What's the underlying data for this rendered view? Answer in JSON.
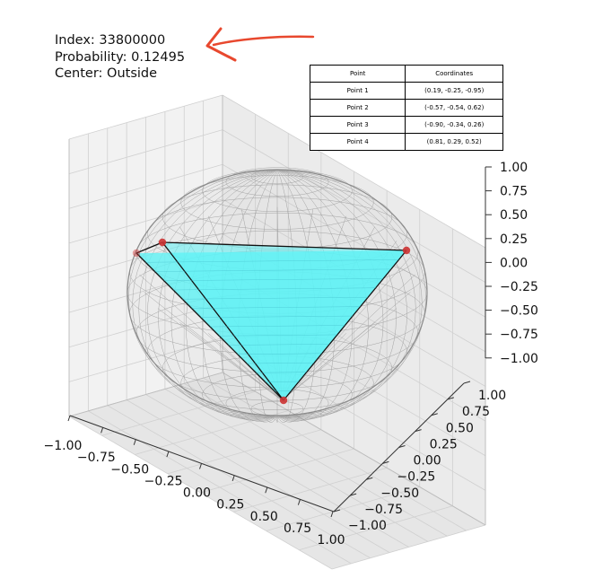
{
  "info": {
    "index_label": "Index: 33800000",
    "probability_label": "Probability: 0.12495",
    "center_label": "Center: Outside"
  },
  "colors": {
    "arrow": "#e8482e",
    "triangle_fill": "#5ef3f5",
    "sphere_wire": "#8c8c8c",
    "point": "#cc3333"
  },
  "table": {
    "headers": [
      "Point",
      "Coordinates"
    ],
    "rows": [
      [
        "Point 1",
        "(0.19, -0.25, -0.95)"
      ],
      [
        "Point 2",
        "(-0.57, -0.54, 0.62)"
      ],
      [
        "Point 3",
        "(-0.90, -0.34, 0.26)"
      ],
      [
        "Point 4",
        "(0.81, 0.29, 0.52)"
      ]
    ]
  },
  "chart_data": {
    "type": "scatter",
    "subtype": "3d-sphere-tetrahedron",
    "points": [
      {
        "name": "Point 1",
        "x": 0.19,
        "y": -0.25,
        "z": -0.95
      },
      {
        "name": "Point 2",
        "x": -0.57,
        "y": -0.54,
        "z": 0.62
      },
      {
        "name": "Point 3",
        "x": -0.9,
        "y": -0.34,
        "z": 0.26
      },
      {
        "name": "Point 4",
        "x": 0.81,
        "y": 0.29,
        "z": 0.52
      }
    ],
    "xlim": [
      -1,
      1
    ],
    "ylim": [
      -1,
      1
    ],
    "zlim": [
      -1,
      1
    ],
    "x_ticks": [
      "−1.00",
      "−0.75",
      "−0.50",
      "−0.25",
      "0.00",
      "0.25",
      "0.50",
      "0.75",
      "1.00"
    ],
    "y_ticks": [
      "−1.00",
      "−0.75",
      "−0.50",
      "−0.25",
      "0.00",
      "0.25",
      "0.50",
      "0.75",
      "1.00"
    ],
    "z_ticks": [
      "−1.00",
      "−0.75",
      "−0.50",
      "−0.25",
      "0.00",
      "0.25",
      "0.50",
      "0.75",
      "1.00"
    ],
    "grid": true
  }
}
